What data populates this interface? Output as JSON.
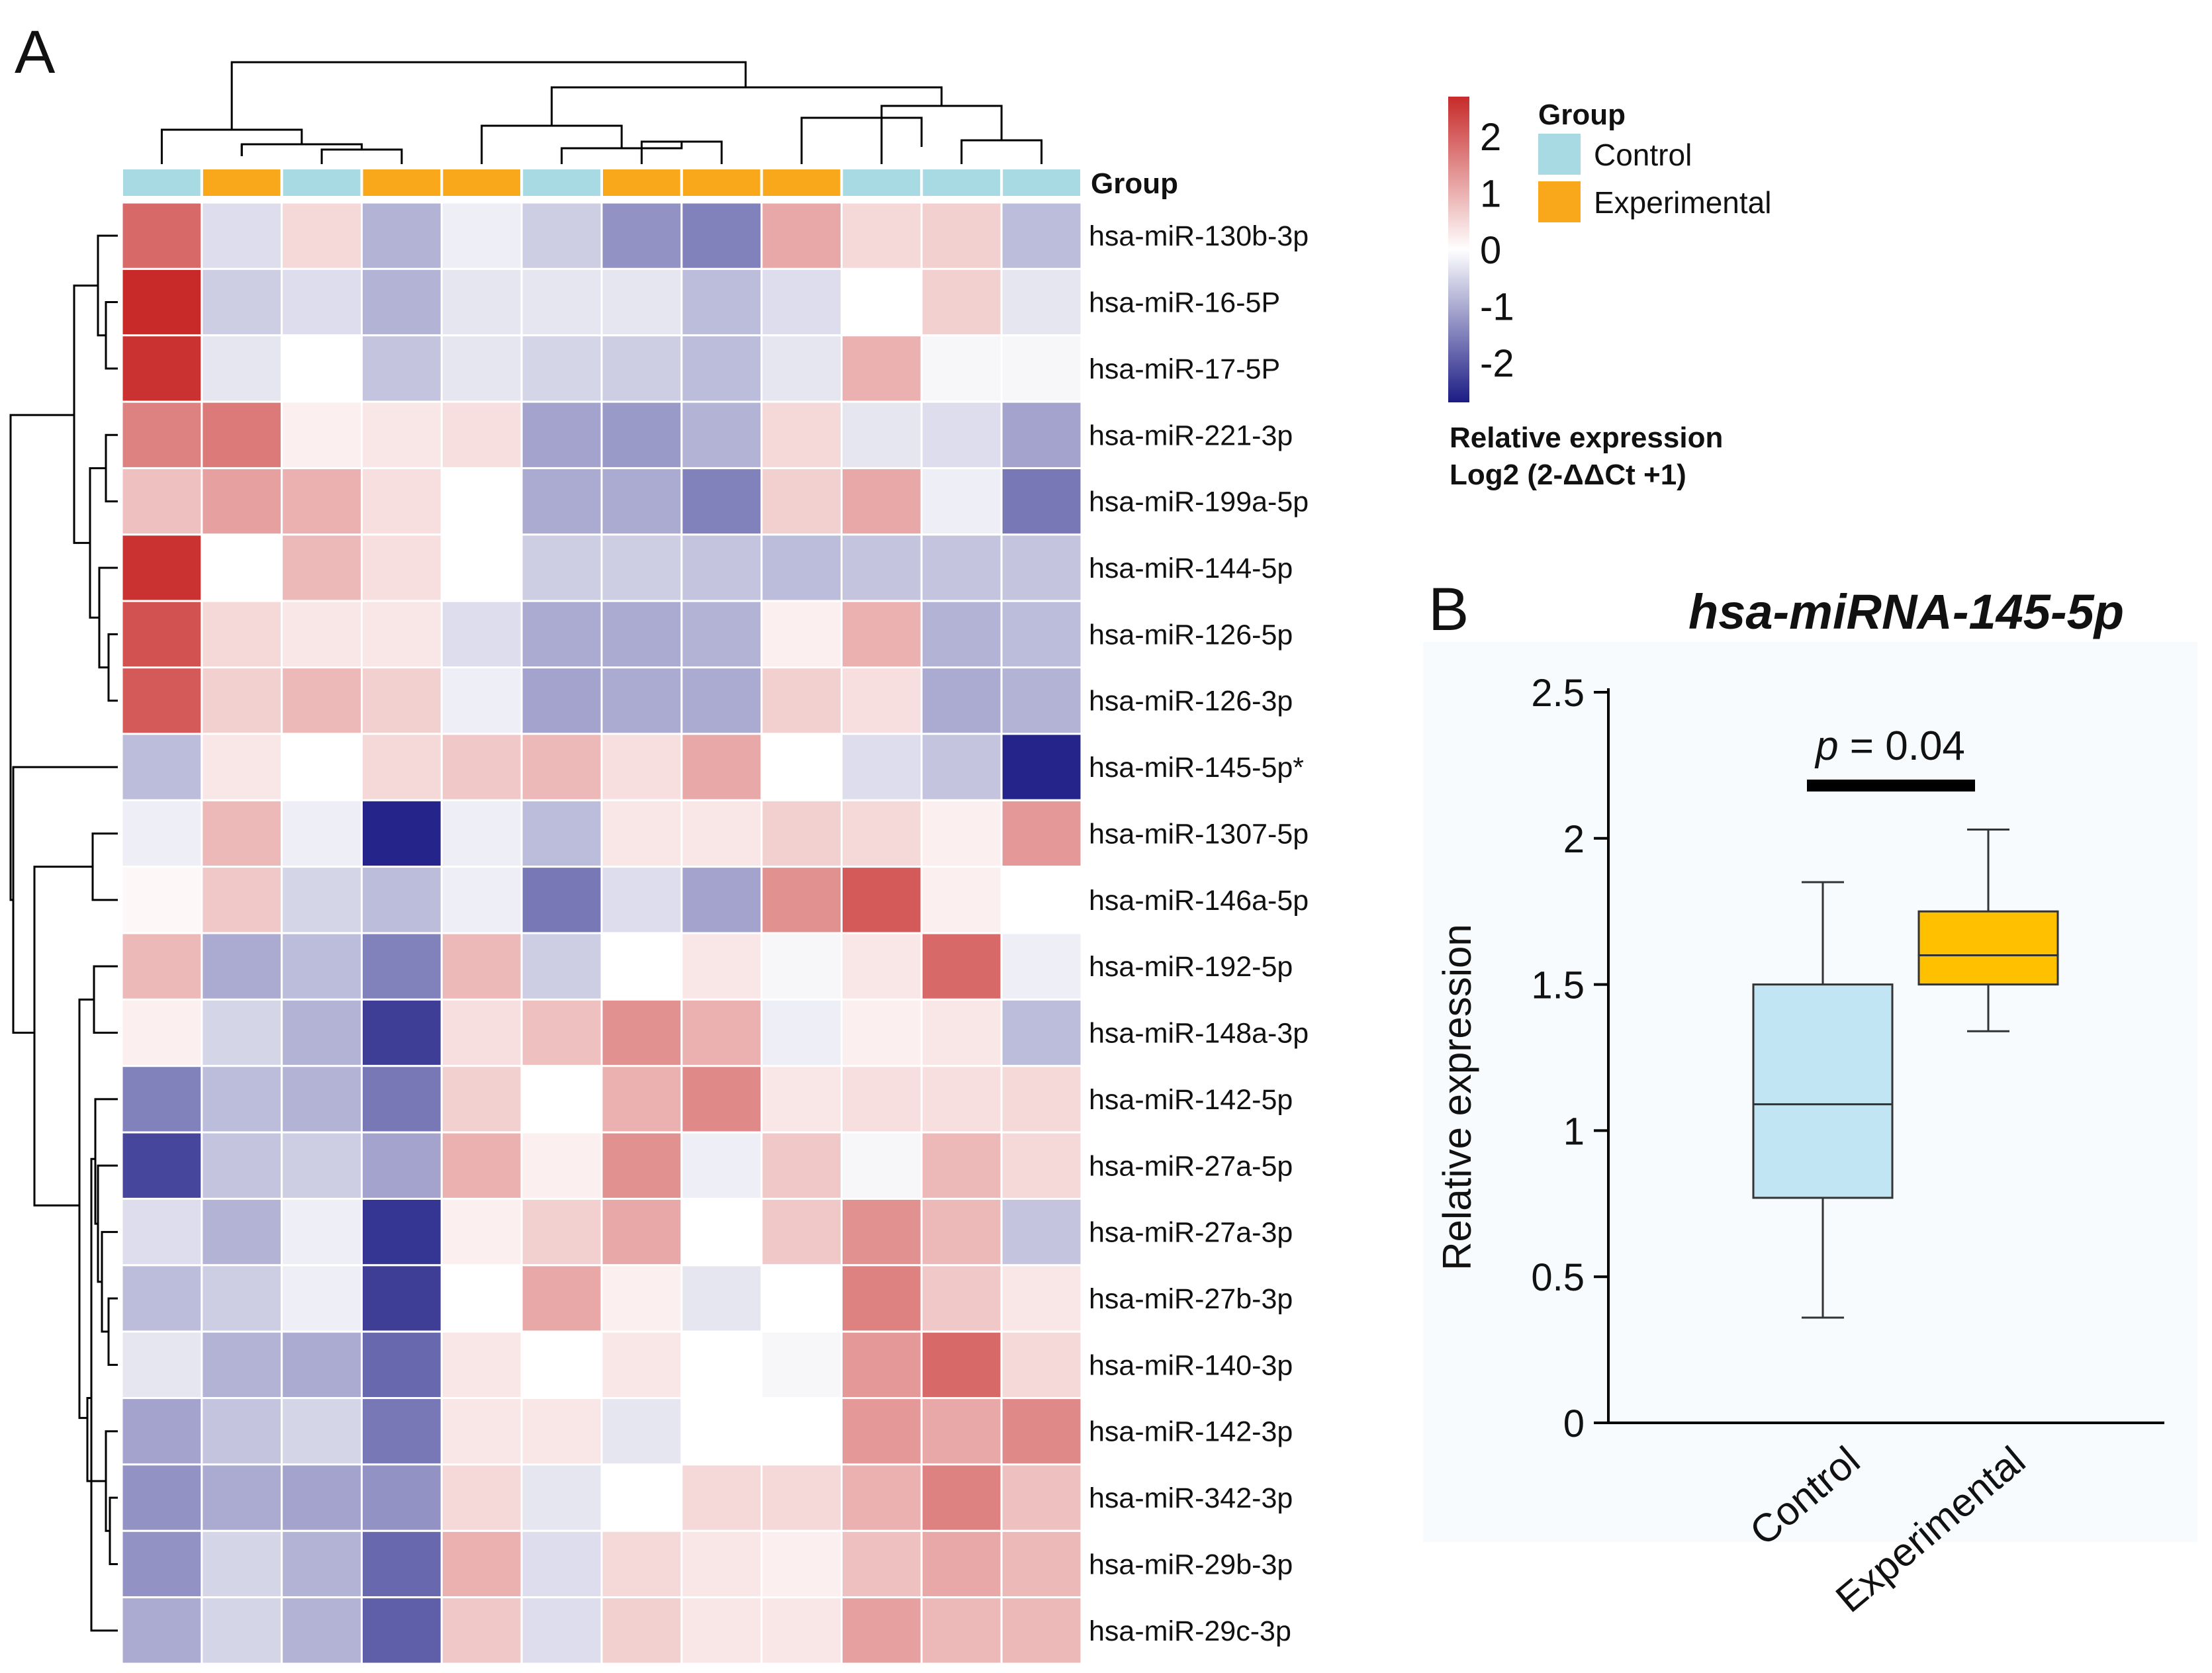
{
  "panels": {
    "a": "A",
    "b": "B"
  },
  "chart_data": [
    {
      "type": "heatmap",
      "title": "",
      "column_group_label": "Group",
      "column_groups": [
        "Control",
        "Experimental",
        "Control",
        "Experimental",
        "Experimental",
        "Control",
        "Experimental",
        "Experimental",
        "Experimental",
        "Control",
        "Control",
        "Control"
      ],
      "rows": [
        "hsa-miR-130b-3p",
        "hsa-miR-16-5P",
        "hsa-miR-17-5P",
        "hsa-miR-221-3p",
        "hsa-miR-199a-5p",
        "hsa-miR-144-5p",
        "hsa-miR-126-5p",
        "hsa-miR-126-3p",
        "hsa-miR-145-5p*",
        "hsa-miR-1307-5p",
        "hsa-miR-146a-5p",
        "hsa-miR-192-5p",
        "hsa-miR-148a-3p",
        "hsa-miR-142-5p",
        "hsa-miR-27a-5p",
        "hsa-miR-27a-3p",
        "hsa-miR-27b-3p",
        "hsa-miR-140-3p",
        "hsa-miR-142-3p",
        "hsa-miR-342-3p",
        "hsa-miR-29b-3p",
        "hsa-miR-29c-3p"
      ],
      "values": [
        [
          1.9,
          -0.4,
          0.5,
          -0.9,
          -0.2,
          -0.6,
          -1.3,
          -1.5,
          1.1,
          0.5,
          0.6,
          -0.8
        ],
        [
          2.8,
          -0.6,
          -0.4,
          -0.9,
          -0.3,
          -0.3,
          -0.3,
          -0.8,
          -0.4,
          0.0,
          0.6,
          -0.3
        ],
        [
          2.6,
          -0.3,
          0.0,
          -0.7,
          -0.3,
          -0.5,
          -0.6,
          -0.8,
          -0.3,
          1.0,
          -0.1,
          -0.1
        ],
        [
          1.6,
          1.7,
          0.2,
          0.3,
          0.4,
          -1.1,
          -1.2,
          -0.9,
          0.5,
          -0.3,
          -0.4,
          -1.1
        ],
        [
          0.8,
          1.2,
          1.0,
          0.4,
          0.0,
          -1.0,
          -1.0,
          -1.5,
          0.6,
          1.1,
          -0.2,
          -1.6
        ],
        [
          2.6,
          0.0,
          0.9,
          0.4,
          0.0,
          -0.6,
          -0.6,
          -0.7,
          -0.8,
          -0.7,
          -0.7,
          -0.7
        ],
        [
          2.2,
          0.5,
          0.3,
          0.3,
          -0.4,
          -1.0,
          -1.0,
          -0.9,
          0.2,
          1.0,
          -0.9,
          -0.8
        ],
        [
          2.1,
          0.6,
          0.9,
          0.6,
          -0.2,
          -1.1,
          -1.0,
          -1.0,
          0.6,
          0.4,
          -1.0,
          -0.9
        ],
        [
          -0.8,
          0.3,
          0.0,
          0.5,
          0.7,
          0.9,
          0.4,
          1.1,
          0.0,
          -0.4,
          -0.7,
          -2.6
        ],
        [
          -0.2,
          0.9,
          -0.2,
          -2.6,
          -0.2,
          -0.8,
          0.3,
          0.3,
          0.6,
          0.5,
          0.2,
          1.3
        ],
        [
          0.1,
          0.7,
          -0.5,
          -0.8,
          -0.2,
          -1.6,
          -0.4,
          -1.1,
          1.4,
          2.1,
          0.2,
          0.0
        ],
        [
          0.9,
          -1.0,
          -0.8,
          -1.5,
          0.9,
          -0.6,
          0.0,
          0.3,
          -0.1,
          0.3,
          1.9,
          -0.2
        ],
        [
          0.2,
          -0.5,
          -0.9,
          -2.3,
          0.4,
          0.8,
          1.4,
          1.0,
          -0.2,
          0.2,
          0.3,
          -0.8
        ],
        [
          -1.5,
          -0.8,
          -0.9,
          -1.6,
          0.6,
          0.0,
          1.0,
          1.5,
          0.3,
          0.4,
          0.4,
          0.5
        ],
        [
          -2.2,
          -0.7,
          -0.6,
          -1.1,
          1.0,
          0.2,
          1.4,
          -0.2,
          0.7,
          -0.1,
          0.9,
          0.5
        ],
        [
          -0.4,
          -0.9,
          -0.2,
          -2.4,
          0.2,
          0.6,
          1.1,
          0.0,
          0.7,
          1.4,
          0.9,
          -0.7
        ],
        [
          -0.8,
          -0.6,
          -0.2,
          -2.3,
          0.0,
          1.1,
          0.2,
          -0.3,
          0.0,
          1.6,
          0.7,
          0.3
        ],
        [
          -0.3,
          -0.9,
          -1.0,
          -1.8,
          0.3,
          0.0,
          0.3,
          0.0,
          -0.1,
          1.3,
          1.9,
          0.5
        ],
        [
          -1.1,
          -0.7,
          -0.5,
          -1.6,
          0.3,
          0.3,
          -0.3,
          0.0,
          0.0,
          1.3,
          1.1,
          1.5
        ],
        [
          -1.3,
          -1.0,
          -1.1,
          -1.3,
          0.5,
          -0.3,
          0.0,
          0.5,
          0.5,
          1.0,
          1.6,
          0.8
        ],
        [
          -1.3,
          -0.5,
          -0.9,
          -1.8,
          1.0,
          -0.4,
          0.5,
          0.3,
          0.2,
          0.8,
          1.1,
          0.9
        ],
        [
          -1.0,
          -0.5,
          -0.9,
          -1.9,
          0.7,
          -0.4,
          0.6,
          0.3,
          0.3,
          1.2,
          0.9,
          0.9
        ]
      ],
      "color_scale": {
        "min": -2.7,
        "max": 2.7,
        "ticks": [
          "2",
          "1",
          "0",
          "-1",
          "-2"
        ],
        "tick_values": [
          2,
          1,
          0,
          -1,
          -2
        ],
        "low_color": "#1c1c85",
        "mid_color": "#ffffff",
        "high_color": "#c82a2a",
        "title_line1": "Relative expression",
        "title_line2": "Log2 (2-ΔΔCt +1)"
      },
      "legend": {
        "title": "Group",
        "entries": [
          {
            "label": "Control",
            "color": "#a8dae4"
          },
          {
            "label": "Experimental",
            "color": "#f9a81b"
          }
        ]
      }
    },
    {
      "type": "box",
      "title": "hsa-miRNA-145-5p",
      "ylabel": "Relative expression",
      "xlabel": "",
      "ylim": [
        0,
        2.5
      ],
      "yticks": [
        0,
        0.5,
        1,
        1.5,
        2,
        2.5
      ],
      "ytick_labels": [
        "0",
        "0.5",
        "1",
        "1.5",
        "2",
        "2.5"
      ],
      "annotation": {
        "p_label": "p",
        "p_value": " = 0.04"
      },
      "categories": [
        "Control",
        "Experimental"
      ],
      "boxes": [
        {
          "name": "Control",
          "min": 0.36,
          "q1": 0.77,
          "median": 1.09,
          "q3": 1.5,
          "max": 1.85,
          "color": "#c2e5f4"
        },
        {
          "name": "Experimental",
          "min": 1.34,
          "q1": 1.5,
          "median": 1.6,
          "q3": 1.75,
          "max": 2.03,
          "color": "#ffc000"
        }
      ]
    }
  ]
}
